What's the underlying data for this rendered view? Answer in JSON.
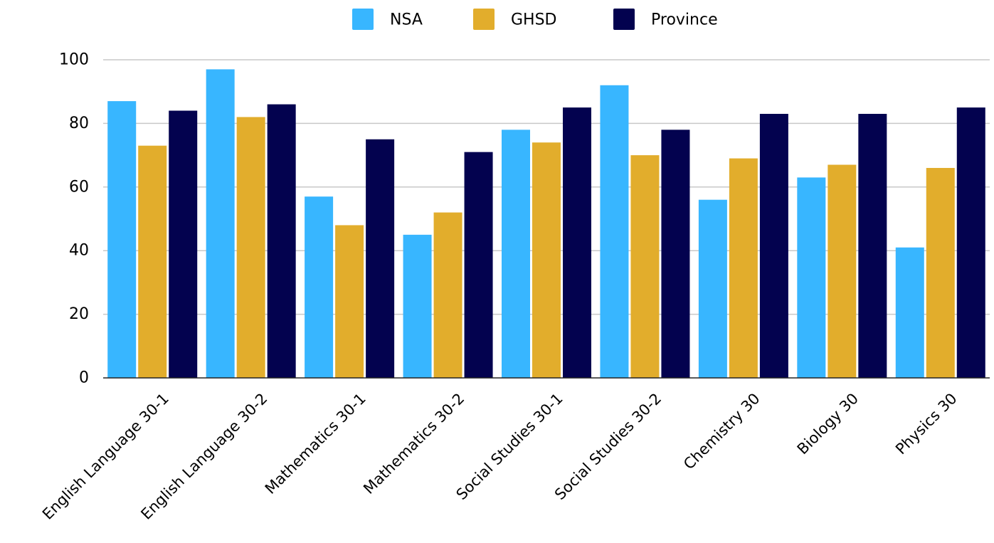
{
  "chart_data": {
    "type": "bar",
    "title": "",
    "xlabel": "",
    "ylabel": "",
    "ylim": [
      0,
      100
    ],
    "yticks": [
      0,
      20,
      40,
      60,
      80,
      100
    ],
    "grid": true,
    "legend_position": "top-center",
    "categories": [
      "English Language 30-1",
      "English Language 30-2",
      "Mathematics 30-1",
      "Mathematics 30-2",
      "Social Studies 30-1",
      "Social Studies 30-2",
      "Chemistry 30",
      "Biology 30",
      "Physics 30"
    ],
    "series": [
      {
        "name": "NSA",
        "color": "#38b6ff",
        "values": [
          87,
          97,
          57,
          45,
          78,
          92,
          56,
          63,
          41
        ]
      },
      {
        "name": "GHSD",
        "color": "#e2ad2c",
        "values": [
          73,
          82,
          48,
          52,
          74,
          70,
          69,
          67,
          66
        ]
      },
      {
        "name": "Province",
        "color": "#03024f",
        "values": [
          84,
          86,
          75,
          71,
          85,
          78,
          83,
          83,
          85
        ]
      }
    ]
  }
}
